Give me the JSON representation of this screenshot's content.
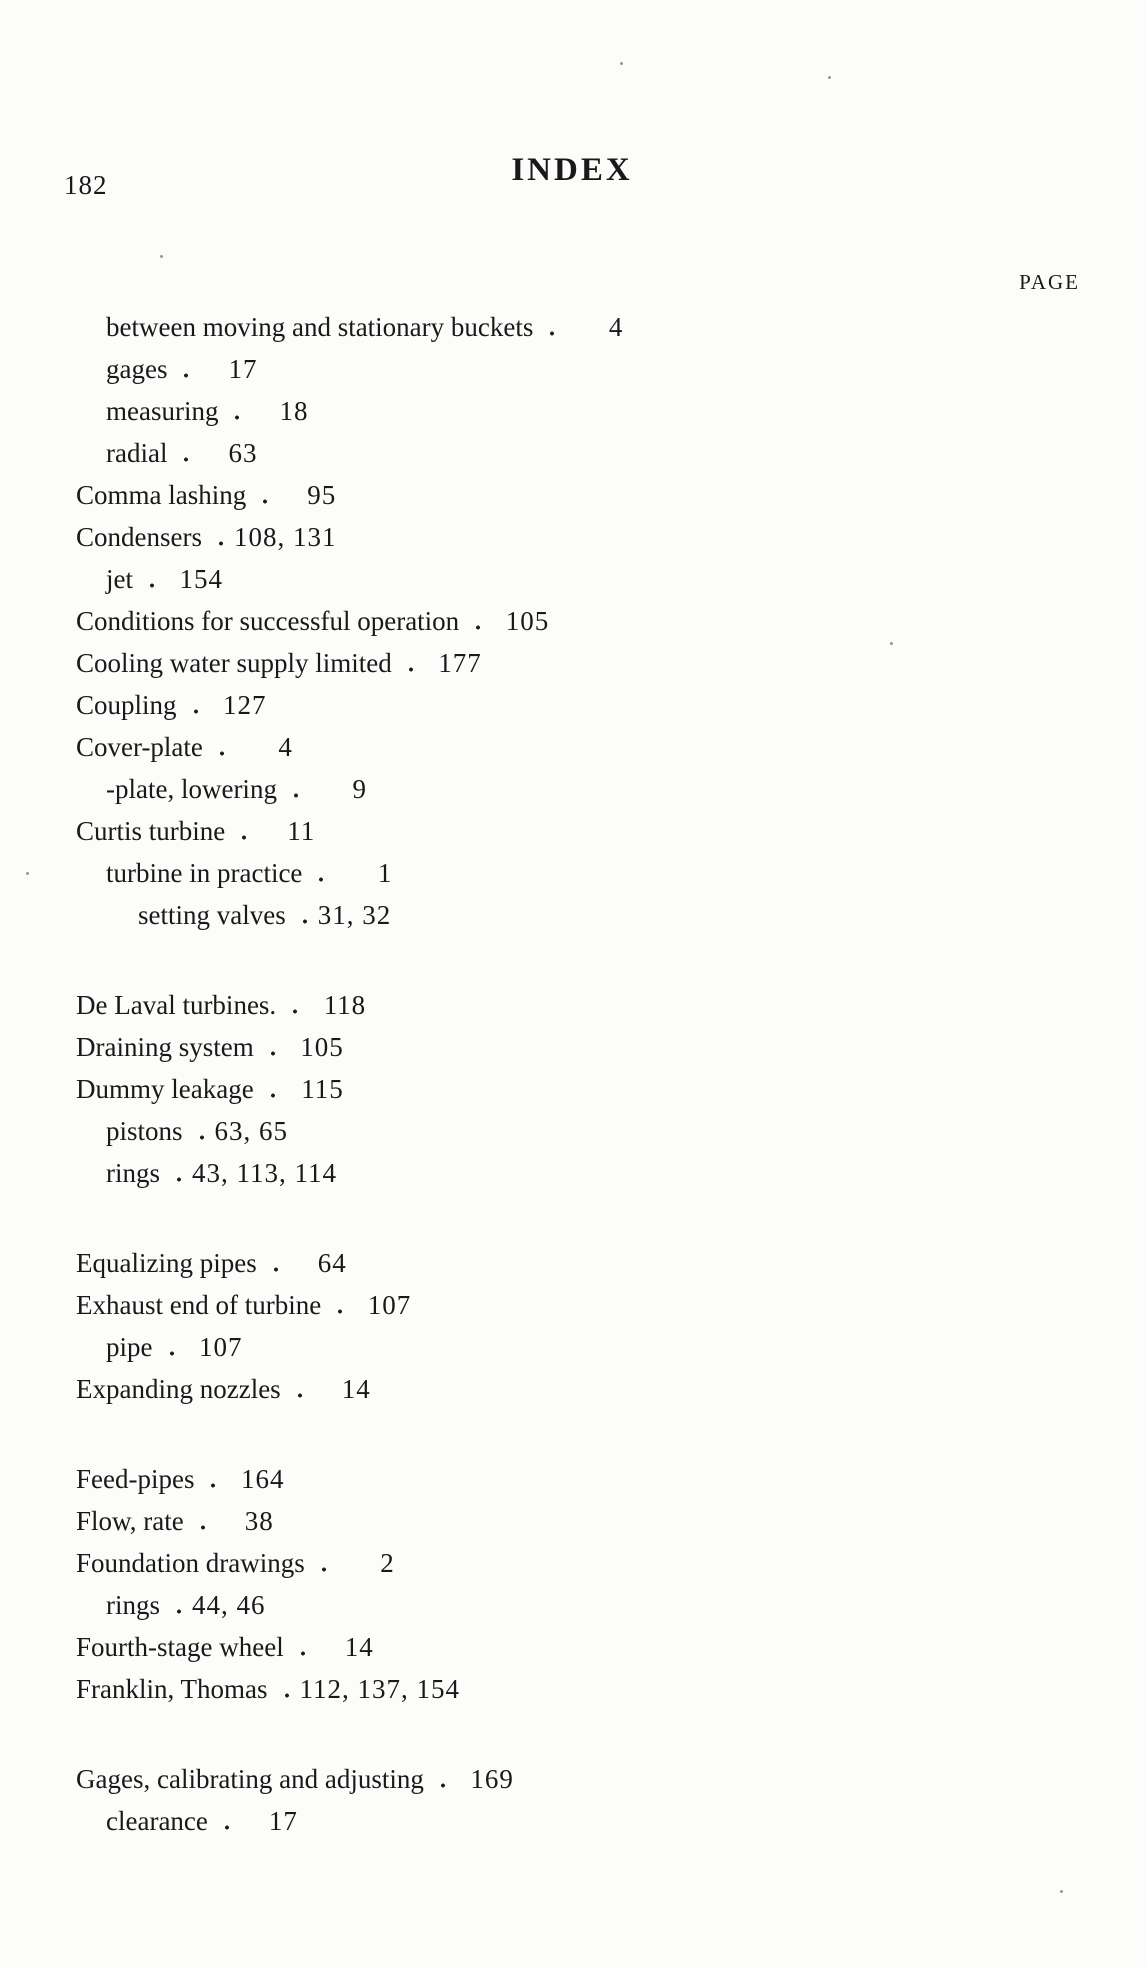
{
  "page": {
    "folio": "182",
    "title": "INDEX",
    "column_header": "PAGE"
  },
  "index_groups": [
    {
      "entries": [
        {
          "label": "between moving and stationary buckets",
          "pages": "4",
          "indent": 1
        },
        {
          "label": "gages",
          "pages": "17",
          "indent": 1
        },
        {
          "label": "measuring",
          "pages": "18",
          "indent": 1
        },
        {
          "label": "radial",
          "pages": "63",
          "indent": 1
        },
        {
          "label": "Comma lashing",
          "pages": "95",
          "indent": 0
        },
        {
          "label": "Condensers",
          "pages": "108, 131",
          "indent": 0
        },
        {
          "label": "jet",
          "pages": "154",
          "indent": 1
        },
        {
          "label": "Conditions for successful operation",
          "pages": "105",
          "indent": 0
        },
        {
          "label": "Cooling water supply limited",
          "pages": "177",
          "indent": 0
        },
        {
          "label": "Coupling",
          "pages": "127",
          "indent": 0
        },
        {
          "label": "Cover-plate",
          "pages": "4",
          "indent": 0
        },
        {
          "label": "-plate, lowering",
          "pages": "9",
          "indent": 1
        },
        {
          "label": "Curtis turbine",
          "pages": "11",
          "indent": 0
        },
        {
          "label": "turbine in practice",
          "pages": "1",
          "indent": 1
        },
        {
          "label": "setting valves",
          "pages": "31, 32",
          "indent": 2
        }
      ]
    },
    {
      "entries": [
        {
          "label": "De Laval turbines.",
          "pages": "118",
          "indent": 0
        },
        {
          "label": "Draining system",
          "pages": "105",
          "indent": 0
        },
        {
          "label": "Dummy leakage",
          "pages": "115",
          "indent": 0
        },
        {
          "label": "pistons",
          "pages": "63, 65",
          "indent": 1
        },
        {
          "label": "rings",
          "pages": "43, 113, 114",
          "indent": 1
        }
      ]
    },
    {
      "entries": [
        {
          "label": "Equalizing pipes",
          "pages": "64",
          "indent": 0
        },
        {
          "label": "Exhaust end of turbine",
          "pages": "107",
          "indent": 0
        },
        {
          "label": "pipe",
          "pages": "107",
          "indent": 1
        },
        {
          "label": "Expanding nozzles",
          "pages": "14",
          "indent": 0
        }
      ]
    },
    {
      "entries": [
        {
          "label": "Feed-pipes",
          "pages": "164",
          "indent": 0
        },
        {
          "label": "Flow, rate",
          "pages": "38",
          "indent": 0
        },
        {
          "label": "Foundation drawings",
          "pages": "2",
          "indent": 0
        },
        {
          "label": "rings",
          "pages": "44, 46",
          "indent": 1
        },
        {
          "label": "Fourth-stage wheel",
          "pages": "14",
          "indent": 0
        },
        {
          "label": "Franklin, Thomas",
          "pages": "112, 137, 154",
          "indent": 0
        }
      ]
    },
    {
      "entries": [
        {
          "label": "Gages, calibrating and adjusting",
          "pages": "169",
          "indent": 0
        },
        {
          "label": "clearance",
          "pages": "17",
          "indent": 1
        }
      ]
    }
  ]
}
